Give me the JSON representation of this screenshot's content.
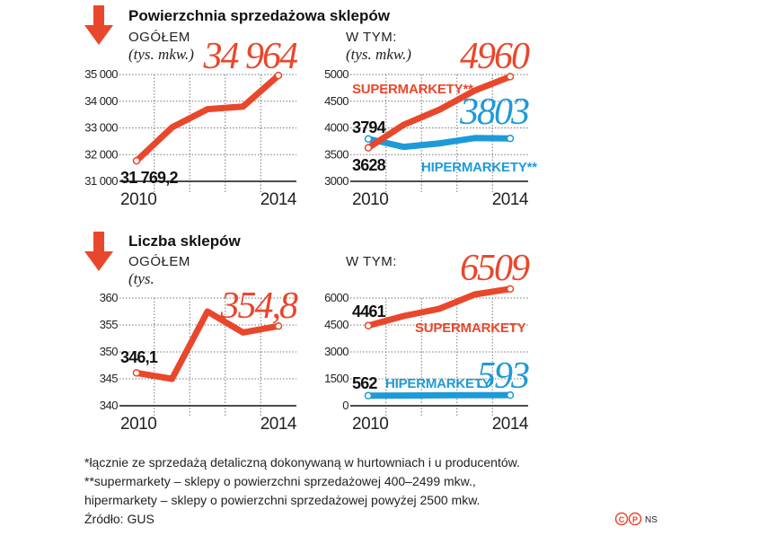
{
  "colors": {
    "supermarkets": "#e9472b",
    "hypermarkets": "#1d9ad8",
    "total": "#e9472b",
    "arrow": "#e9472b"
  },
  "icons": {
    "header_arrow": "arrow-down-icon",
    "license": "copyright-icon"
  },
  "section1": {
    "title": "Powierzchnia sprzedażowa sklepów",
    "left_label": "OGÓŁEM",
    "left_unit": "(tys. mkw.)",
    "right_label": "W TYM:",
    "right_unit": "(tys. mkw.)"
  },
  "section2": {
    "title": "Liczba sklepów",
    "left_label": "OGÓŁEM",
    "left_unit": "(tys.",
    "right_label": "W TYM:"
  },
  "chart_data": [
    {
      "type": "line",
      "id": "area-total",
      "x": [
        2010,
        2011,
        2012,
        2013,
        2014
      ],
      "xticks": [
        "2010",
        "2014"
      ],
      "ylim": [
        31000,
        35000
      ],
      "yticks": [
        "35 000",
        "34 000",
        "33 000",
        "32 000",
        "31 000"
      ],
      "grid": true,
      "series": [
        {
          "values": [
            31769.2,
            33020,
            33700,
            33800,
            34964
          ],
          "color": "#e9472b",
          "start_label": "31 769,2",
          "end_label": "34 964"
        }
      ]
    },
    {
      "type": "line",
      "id": "area-breakdown",
      "x": [
        2010,
        2011,
        2012,
        2013,
        2014
      ],
      "xticks": [
        "2010",
        "2014"
      ],
      "ylim": [
        3000,
        5000
      ],
      "yticks": [
        "5000",
        "4500",
        "4000",
        "3500",
        "3000"
      ],
      "grid": true,
      "series": [
        {
          "name": "SUPERMARKETY**",
          "values": [
            3628,
            4060,
            4340,
            4700,
            4960
          ],
          "color": "#e9472b",
          "start_label": "3628",
          "end_label": "4960"
        },
        {
          "name": "HIPERMARKETY**",
          "values": [
            3794,
            3645,
            3710,
            3810,
            3803
          ],
          "color": "#1d9ad8",
          "start_label": "3794",
          "end_label": "3803"
        }
      ]
    },
    {
      "type": "line",
      "id": "count-total",
      "x": [
        2010,
        2011,
        2012,
        2013,
        2014
      ],
      "xticks": [
        "2010",
        "2014"
      ],
      "ylim": [
        340,
        360
      ],
      "yticks": [
        "360",
        "355",
        "350",
        "345",
        "340"
      ],
      "grid": true,
      "series": [
        {
          "values": [
            346.1,
            345.0,
            357.5,
            353.6,
            354.8
          ],
          "color": "#e9472b",
          "start_label": "346,1",
          "end_label": "354,8"
        }
      ]
    },
    {
      "type": "line",
      "id": "count-breakdown",
      "x": [
        2010,
        2011,
        2012,
        2013,
        2014
      ],
      "xticks": [
        "2010",
        "2014"
      ],
      "ylim": [
        0,
        6000
      ],
      "yticks": [
        "6000",
        "4500",
        "3000",
        "1500",
        "0"
      ],
      "grid": true,
      "series": [
        {
          "name": "SUPERMARKETY",
          "values": [
            4461,
            5000,
            5400,
            6200,
            6509
          ],
          "color": "#e9472b",
          "start_label": "4461",
          "end_label": "6509"
        },
        {
          "name": "HIPERMARKETY",
          "values": [
            562,
            570,
            580,
            590,
            593
          ],
          "color": "#1d9ad8",
          "start_label": "562",
          "end_label": "593"
        }
      ]
    }
  ],
  "footer": {
    "note1": "*łącznie ze sprzedażą detaliczną dokonywaną w hurtowniach i u producentów.",
    "note2": "**supermarkety – sklepy o powierzchni sprzedażowej 400–2499 mkw.,",
    "note3": "hipermarkety – sklepy o powierzchni sprzedażowej powyżej 2500 mkw.",
    "source": "Źródło: GUS",
    "credit": "NS"
  }
}
